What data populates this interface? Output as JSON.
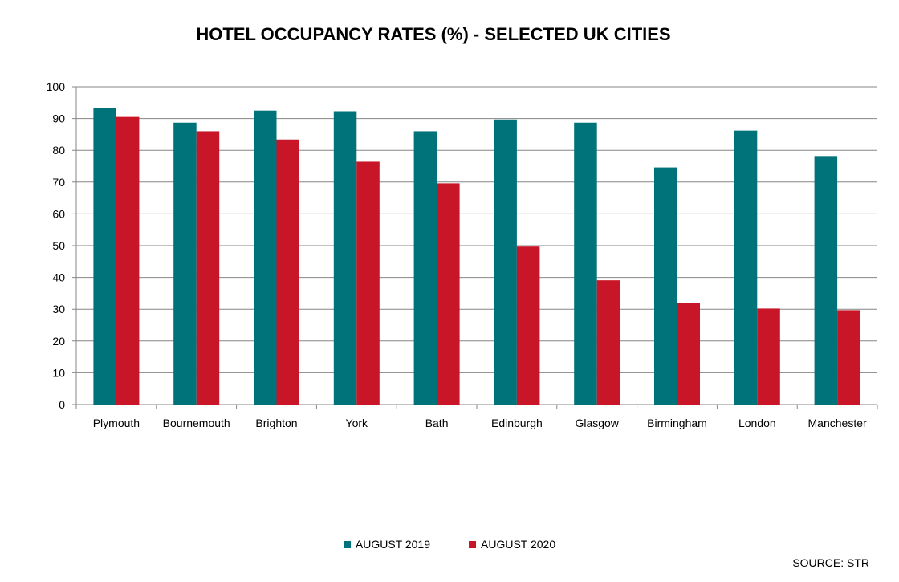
{
  "chart_data": {
    "type": "bar",
    "title": "HOTEL OCCUPANCY RATES (%) - SELECTED UK CITIES",
    "categories": [
      "Plymouth",
      "Bournemouth",
      "Brighton",
      "York",
      "Bath",
      "Edinburgh",
      "Glasgow",
      "Birmingham",
      "London",
      "Manchester"
    ],
    "series": [
      {
        "name": "AUGUST 2019",
        "color": "#00737A",
        "values": [
          93.3,
          88.7,
          92.5,
          92.3,
          86.0,
          89.7,
          88.7,
          74.6,
          86.2,
          78.2
        ]
      },
      {
        "name": "AUGUST 2020",
        "color": "#C81628",
        "values": [
          90.5,
          86.0,
          83.4,
          76.4,
          69.6,
          49.7,
          39.1,
          32.0,
          30.2,
          29.7
        ]
      }
    ],
    "ylim": [
      0,
      100
    ],
    "yticks": [
      0,
      10,
      20,
      30,
      40,
      50,
      60,
      70,
      80,
      90,
      100
    ],
    "grid": true,
    "legend": "bottom",
    "source": "SOURCE: STR"
  }
}
